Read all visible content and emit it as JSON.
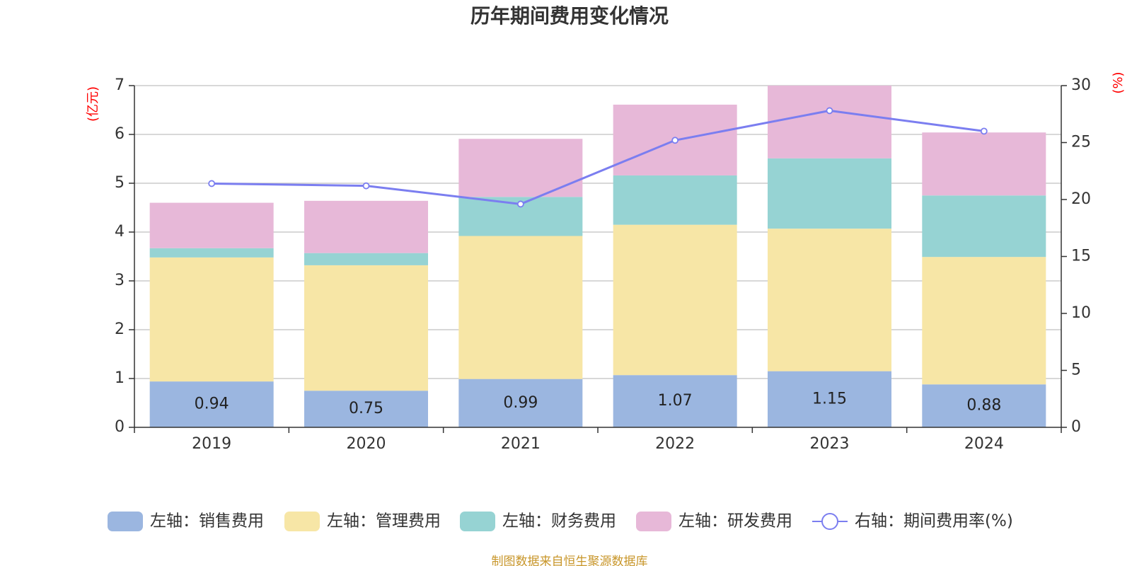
{
  "chart_data": {
    "type": "bar",
    "stacked": true,
    "title": "历年期间费用变化情况",
    "categories": [
      "2019",
      "2020",
      "2021",
      "2022",
      "2023",
      "2024"
    ],
    "left_axis": {
      "unit": "(亿元)",
      "ylim": [
        0,
        7
      ],
      "ticks": [
        "0",
        "1",
        "2",
        "3",
        "4",
        "5",
        "6",
        "7"
      ]
    },
    "right_axis": {
      "unit": "(%)",
      "ylim": [
        0,
        30
      ],
      "ticks": [
        "0",
        "5",
        "10",
        "15",
        "20",
        "25",
        "30"
      ]
    },
    "series": [
      {
        "name": "左轴：销售费用",
        "axis": "left",
        "kind": "bar",
        "color": "#9bb6e0",
        "values": [
          0.94,
          0.75,
          0.99,
          1.07,
          1.15,
          0.88
        ],
        "labels": [
          "0.94",
          "0.75",
          "0.99",
          "1.07",
          "1.15",
          "0.88"
        ]
      },
      {
        "name": "左轴：管理费用",
        "axis": "left",
        "kind": "bar",
        "color": "#f7e6a6",
        "values": [
          2.54,
          2.57,
          2.93,
          3.08,
          2.92,
          2.61
        ]
      },
      {
        "name": "左轴：财务费用",
        "axis": "left",
        "kind": "bar",
        "color": "#96d3d3",
        "values": [
          0.19,
          0.25,
          0.8,
          1.01,
          1.44,
          1.26
        ]
      },
      {
        "name": "左轴：研发费用",
        "axis": "left",
        "kind": "bar",
        "color": "#e7b8d8",
        "values": [
          0.93,
          1.07,
          1.19,
          1.45,
          1.49,
          1.29
        ]
      },
      {
        "name": "右轴：期间费用率(%)",
        "axis": "right",
        "kind": "line",
        "color": "#7b7ef0",
        "values": [
          21.4,
          21.2,
          19.6,
          25.2,
          27.8,
          26.0
        ]
      }
    ],
    "legend_position": "bottom",
    "grid": true
  },
  "source": "制图数据来自恒生聚源数据库"
}
